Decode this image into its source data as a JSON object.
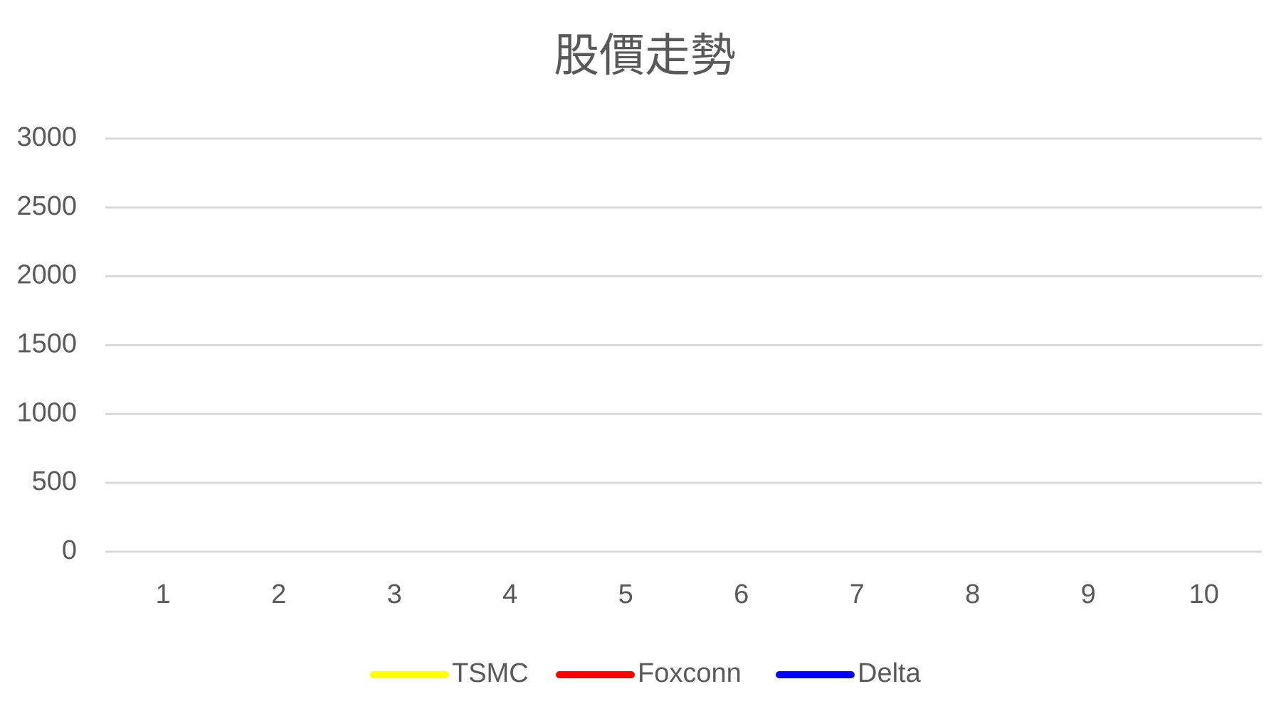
{
  "chart_data": {
    "type": "line",
    "title": "股價走勢",
    "categories": [
      "1",
      "2",
      "3",
      "4",
      "5",
      "6",
      "7",
      "8",
      "9",
      "10"
    ],
    "series": [
      {
        "name": "TSMC",
        "color": "#ffff00",
        "values": [
          null,
          null,
          null,
          null,
          null,
          null,
          null,
          null,
          null,
          null
        ]
      },
      {
        "name": "Foxconn",
        "color": "#ff0000",
        "values": [
          null,
          null,
          null,
          null,
          null,
          null,
          null,
          null,
          null,
          null
        ]
      },
      {
        "name": "Delta",
        "color": "#0000ff",
        "values": [
          null,
          null,
          null,
          null,
          null,
          null,
          null,
          null,
          null,
          null
        ]
      }
    ],
    "ylim": [
      0,
      3000
    ],
    "yticks": [
      0,
      500,
      1000,
      1500,
      2000,
      2500,
      3000
    ],
    "grid": true,
    "legend": "bottom"
  }
}
